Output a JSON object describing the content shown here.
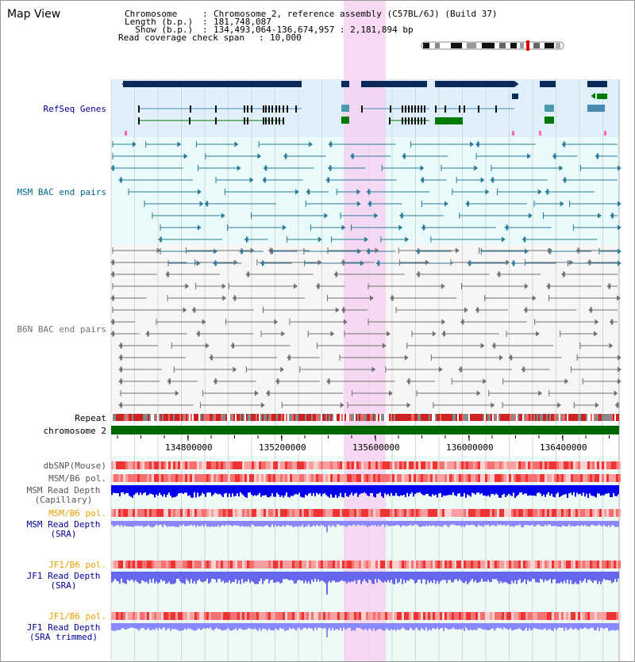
{
  "header": {
    "title": "Map View",
    "info_lines": [
      {
        "key": "Chromosome      ",
        "value": "Chromosome 2, reference assembly (C57BL/6J) (Build 37)"
      },
      {
        "key": "Length (b.p.)  ",
        "value": "181,748,087"
      },
      {
        "key": "  Show (b.p.)  ",
        "value": "134,493,064-136,674,957 : 2,181,894 bp"
      },
      {
        "key": "Read coverage check span",
        "value": "10,000"
      }
    ]
  },
  "tracks": {
    "refseq_label": "RefSeq Genes",
    "msm_bac_label": "MSM BAC end pairs",
    "b6n_bac_label": "B6N BAC end pairs",
    "repeat_label": "Repeat",
    "chromosome_label": "chromosome 2",
    "dbsnp_label": "dbSNP(Mouse)",
    "msm_b6_pol_label_1": "MSM/B6 pol.",
    "msm_depth_cap_label_1": "MSM Read Depth",
    "msm_depth_cap_label_2": "(Capillary)",
    "msm_b6_pol_label_2": "MSM/B6 pol.",
    "msm_depth_sra_label_1": "MSM Read Depth",
    "msm_depth_sra_label_2": "(SRA)",
    "jf1_b6_pol_label_1": "JF1/B6 pol.",
    "jf1_depth_sra_label_1": "JF1 Read Depth",
    "jf1_depth_sra_label_2": "(SRA)",
    "jf1_b6_pol_label_2": "JF1/B6 pol.",
    "jf1_depth_trim_label_1": "JF1 Read Depth",
    "jf1_depth_trim_label_2": "(SRA trimmed)"
  },
  "axis": {
    "ticks": [
      "134800000",
      "135200000",
      "135600000",
      "136000000",
      "136400000"
    ]
  },
  "colors": {
    "refseq_bg": "#dff0fa",
    "msm_bac_bg": "#e8fafa",
    "b6n_bac_bg": "#f6f6f6",
    "lower_bg": "#eefaf6",
    "highlight": "#f6d2f2",
    "refseq_dark": "#0b2a5a",
    "refseq_blue": "#4a8ab0",
    "refseq_green": "#007a00",
    "msm_bac": "#2a7a9a",
    "b6n_bac": "#707070",
    "chromosome": "#006600",
    "blue_label": "#000099",
    "orange_label": "#e8a000",
    "msm_label": "#006688",
    "depth_dark": "#0000ee",
    "depth_light": "#8888ff"
  }
}
